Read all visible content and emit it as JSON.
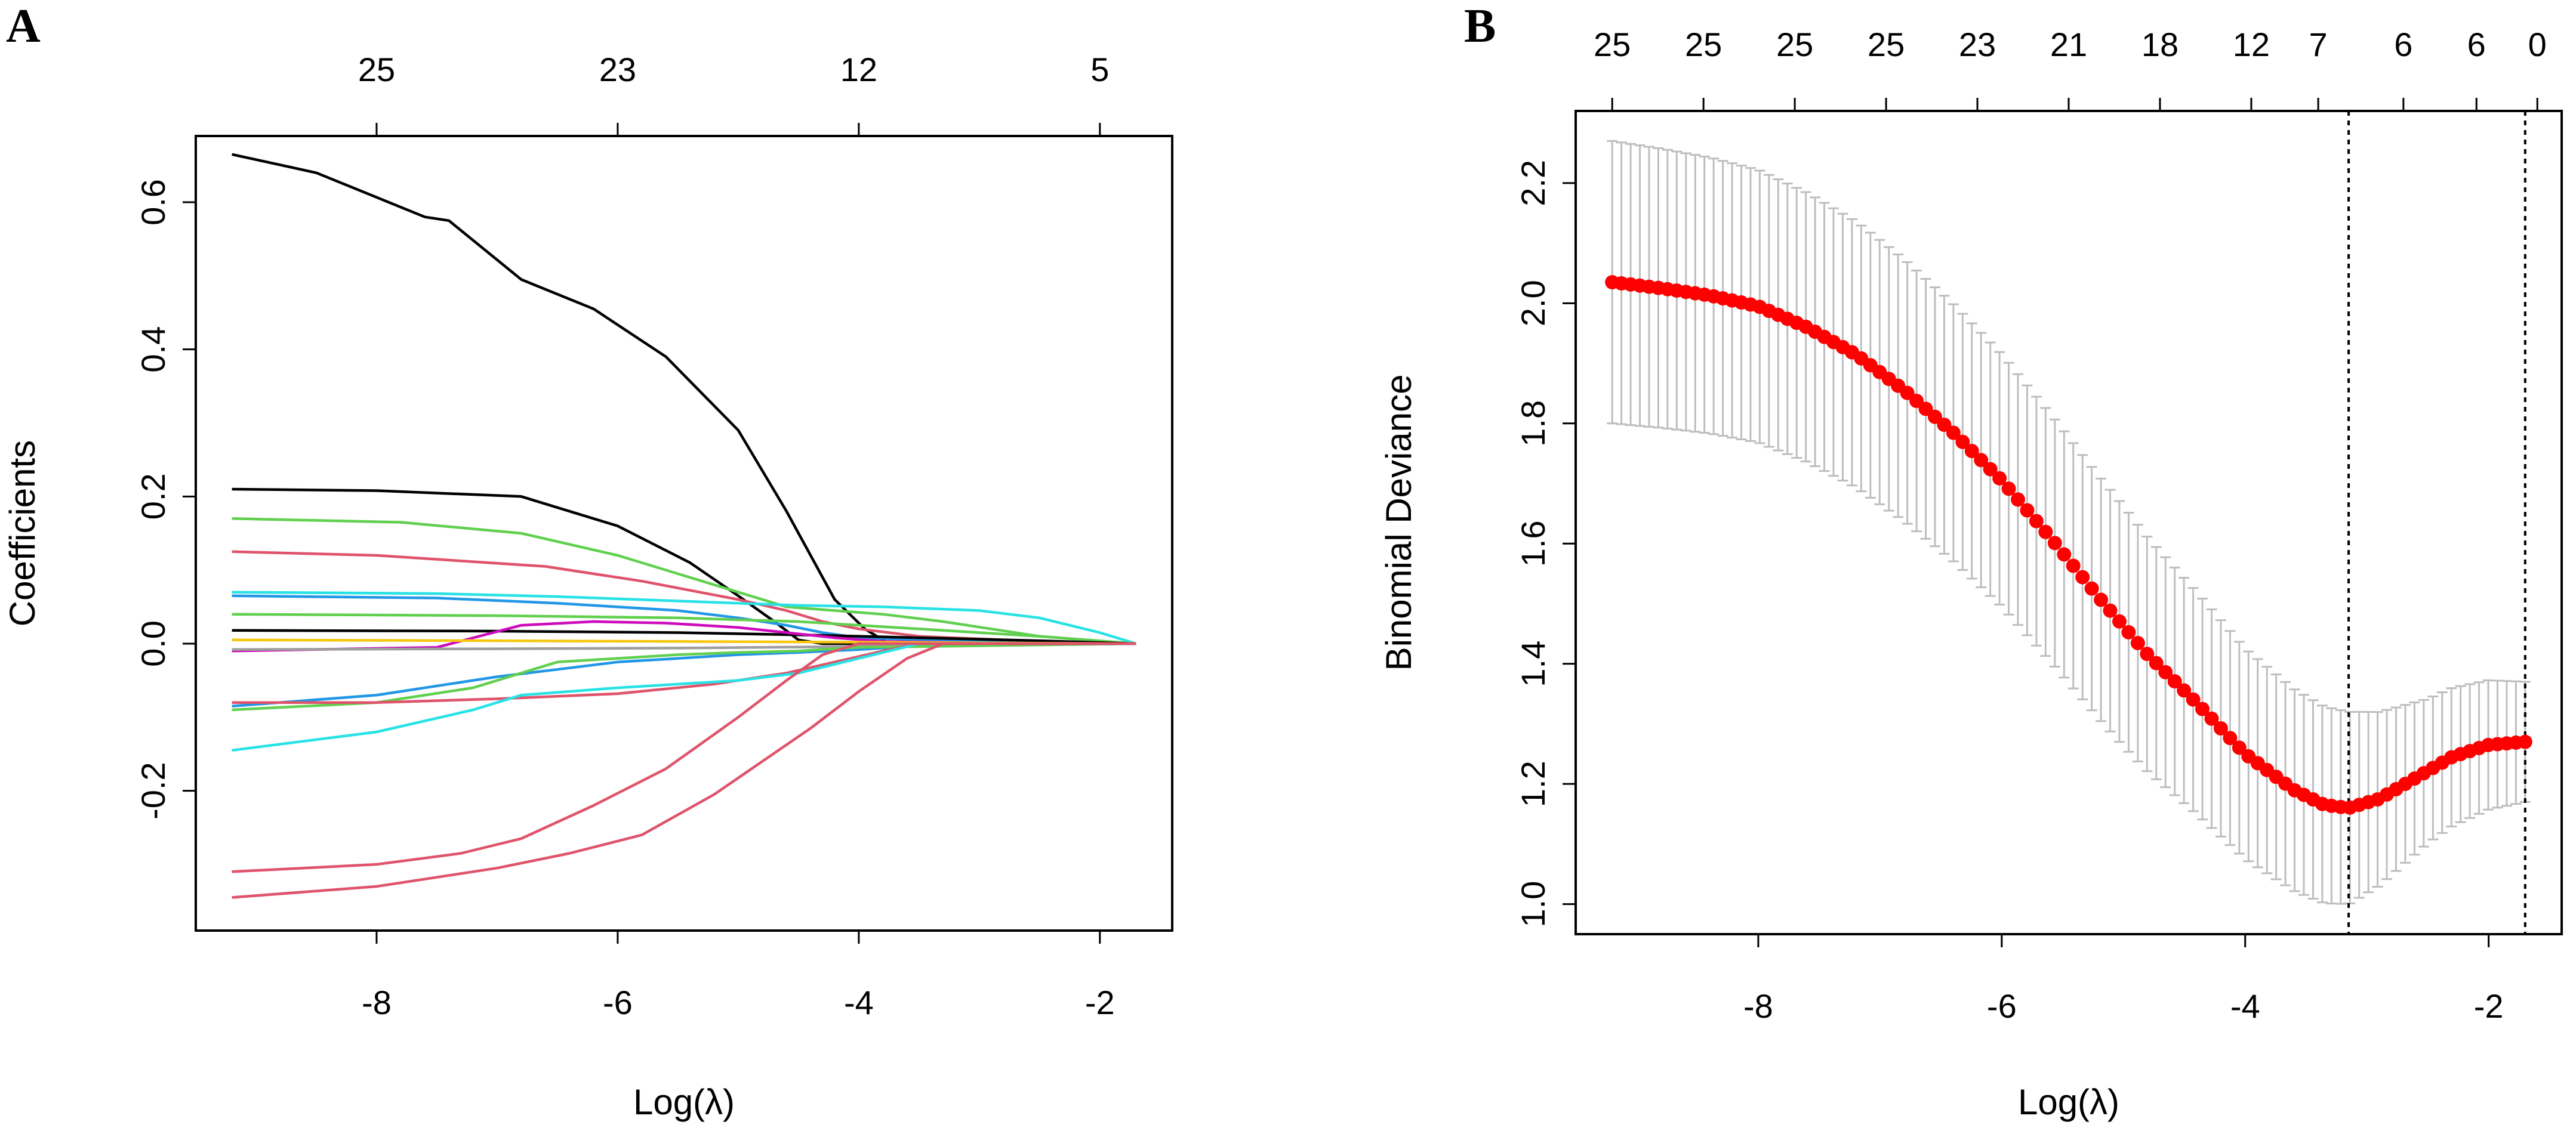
{
  "chart_data": [
    {
      "panel": "A",
      "type": "line",
      "xlabel": "Log(λ)",
      "ylabel": "Coefficients",
      "xlim": [
        -9.5,
        -1.4
      ],
      "ylim": [
        -0.39,
        0.69
      ],
      "x_ticks": [
        -8,
        -6,
        -4,
        -2
      ],
      "x_tick_labels": [
        "-8",
        "-6",
        "-4",
        "-2"
      ],
      "y_ticks": [
        -0.2,
        0.0,
        0.2,
        0.4,
        0.6
      ],
      "y_tick_labels": [
        "-0.2",
        "0.0",
        "0.2",
        "0.4",
        "0.6"
      ],
      "top_ticks": [
        -8,
        -6,
        -4,
        -2
      ],
      "top_tick_labels": [
        "25",
        "23",
        "12",
        "5"
      ],
      "series": [
        {
          "name": "coef-1",
          "color": "#000000",
          "x": [
            -9.2,
            -8.5,
            -7.6,
            -7.4,
            -6.8,
            -6.2,
            -5.6,
            -5.0,
            -4.6,
            -4.2,
            -3.95,
            -3.75,
            -3.5,
            -2.5,
            -1.7
          ],
          "y": [
            0.665,
            0.64,
            0.58,
            0.575,
            0.495,
            0.455,
            0.39,
            0.29,
            0.18,
            0.06,
            0.02,
            0.0,
            0.0,
            0.0,
            0.0
          ]
        },
        {
          "name": "coef-2",
          "color": "#000000",
          "x": [
            -9.2,
            -8.0,
            -6.8,
            -6.0,
            -5.4,
            -5.0,
            -4.7,
            -4.5,
            -4.3,
            -3.5,
            -1.7
          ],
          "y": [
            0.21,
            0.208,
            0.2,
            0.16,
            0.11,
            0.065,
            0.03,
            0.005,
            0.0,
            0.0,
            0.0
          ]
        },
        {
          "name": "coef-3",
          "color": "#61D04F",
          "x": [
            -9.2,
            -7.8,
            -6.8,
            -6.0,
            -5.4,
            -5.0,
            -4.6,
            -4.2,
            -3.8,
            -3.3,
            -2.5,
            -1.7
          ],
          "y": [
            0.17,
            0.165,
            0.15,
            0.12,
            0.09,
            0.07,
            0.05,
            0.045,
            0.04,
            0.03,
            0.01,
            0.0
          ]
        },
        {
          "name": "coef-4",
          "color": "#DF536B",
          "x": [
            -9.2,
            -8.0,
            -6.6,
            -5.8,
            -5.0,
            -4.6,
            -4.3,
            -4.0,
            -3.5,
            -2.5,
            -1.7
          ],
          "y": [
            0.125,
            0.12,
            0.105,
            0.085,
            0.06,
            0.045,
            0.03,
            0.02,
            0.01,
            0.003,
            0.0
          ]
        },
        {
          "name": "coef-5",
          "color": "#28E2E5",
          "x": [
            -9.2,
            -7.5,
            -6.5,
            -5.5,
            -4.5,
            -3.8,
            -3.0,
            -2.5,
            -2.0,
            -1.7
          ],
          "y": [
            0.07,
            0.068,
            0.064,
            0.058,
            0.052,
            0.05,
            0.045,
            0.035,
            0.015,
            0.0
          ]
        },
        {
          "name": "coef-6",
          "color": "#2297E6",
          "x": [
            -9.2,
            -7.5,
            -6.5,
            -5.5,
            -5.0,
            -4.6,
            -4.3,
            -4.0,
            -3.0,
            -1.7
          ],
          "y": [
            0.065,
            0.062,
            0.055,
            0.045,
            0.035,
            0.025,
            0.015,
            0.008,
            0.003,
            0.0
          ]
        },
        {
          "name": "coef-7",
          "color": "#61D04F",
          "x": [
            -9.2,
            -7.0,
            -5.5,
            -4.5,
            -3.5,
            -2.5,
            -1.7
          ],
          "y": [
            0.04,
            0.038,
            0.035,
            0.03,
            0.02,
            0.01,
            0.0
          ]
        },
        {
          "name": "coef-8",
          "color": "#000000",
          "x": [
            -9.2,
            -7.0,
            -5.5,
            -4.5,
            -3.5,
            -2.5,
            -1.7
          ],
          "y": [
            0.018,
            0.017,
            0.015,
            0.012,
            0.008,
            0.004,
            0.0
          ]
        },
        {
          "name": "coef-9",
          "color": "#CD0BBC",
          "x": [
            -9.2,
            -7.5,
            -6.8,
            -6.2,
            -5.6,
            -5.0,
            -4.6,
            -4.2,
            -3.8,
            -3.0,
            -1.7
          ],
          "y": [
            -0.01,
            -0.005,
            0.025,
            0.03,
            0.028,
            0.022,
            0.015,
            0.008,
            0.003,
            0.001,
            0.0
          ]
        },
        {
          "name": "coef-10",
          "color": "#F5C710",
          "x": [
            -9.2,
            -7.0,
            -5.5,
            -4.0,
            -3.0,
            -1.7
          ],
          "y": [
            0.005,
            0.004,
            0.003,
            0.002,
            0.001,
            0.0
          ]
        },
        {
          "name": "coef-11",
          "color": "#9E9E9E",
          "x": [
            -9.2,
            -7.0,
            -5.5,
            -4.0,
            -3.0,
            -1.7
          ],
          "y": [
            -0.008,
            -0.007,
            -0.006,
            -0.004,
            -0.002,
            0.0
          ]
        },
        {
          "name": "coef-12",
          "color": "#2297E6",
          "x": [
            -9.2,
            -8.0,
            -7.4,
            -7.0,
            -6.5,
            -6.0,
            -5.5,
            -5.0,
            -4.5,
            -4.0,
            -3.5,
            -1.7
          ],
          "y": [
            -0.085,
            -0.07,
            -0.055,
            -0.045,
            -0.035,
            -0.025,
            -0.02,
            -0.015,
            -0.012,
            -0.008,
            -0.003,
            0.0
          ]
        },
        {
          "name": "coef-13",
          "color": "#61D04F",
          "x": [
            -9.2,
            -8.0,
            -7.2,
            -6.8,
            -6.5,
            -6.0,
            -5.5,
            -5.0,
            -4.5,
            -4.0,
            -1.7
          ],
          "y": [
            -0.09,
            -0.08,
            -0.06,
            -0.04,
            -0.025,
            -0.02,
            -0.015,
            -0.012,
            -0.01,
            -0.005,
            0.0
          ]
        },
        {
          "name": "coef-14",
          "color": "#DF536B",
          "x": [
            -9.2,
            -8.0,
            -7.0,
            -6.0,
            -5.2,
            -4.6,
            -4.2,
            -3.8,
            -3.5,
            -1.7
          ],
          "y": [
            -0.08,
            -0.08,
            -0.075,
            -0.068,
            -0.055,
            -0.04,
            -0.025,
            -0.01,
            0.0,
            0.0
          ]
        },
        {
          "name": "coef-15",
          "color": "#28E2E5",
          "x": [
            -9.2,
            -8.0,
            -7.2,
            -6.8,
            -6.0,
            -5.0,
            -4.5,
            -4.0,
            -3.5,
            -1.7
          ],
          "y": [
            -0.145,
            -0.12,
            -0.09,
            -0.07,
            -0.06,
            -0.05,
            -0.04,
            -0.02,
            0.0,
            0.0
          ]
        },
        {
          "name": "coef-16",
          "color": "#DF536B",
          "x": [
            -9.2,
            -8.0,
            -7.3,
            -6.8,
            -6.2,
            -5.6,
            -5.0,
            -4.6,
            -4.3,
            -4.0,
            -3.7,
            -1.7
          ],
          "y": [
            -0.31,
            -0.3,
            -0.285,
            -0.265,
            -0.22,
            -0.17,
            -0.1,
            -0.05,
            -0.015,
            0.0,
            0.0,
            0.0
          ]
        },
        {
          "name": "coef-17",
          "color": "#DF536B",
          "x": [
            -9.2,
            -8.0,
            -7.0,
            -6.4,
            -5.8,
            -5.2,
            -4.8,
            -4.4,
            -4.0,
            -3.6,
            -3.3,
            -1.7
          ],
          "y": [
            -0.345,
            -0.33,
            -0.305,
            -0.285,
            -0.26,
            -0.205,
            -0.16,
            -0.115,
            -0.065,
            -0.02,
            0.0,
            0.0
          ]
        }
      ]
    },
    {
      "panel": "B",
      "type": "scatter",
      "subtype": "cv-deviance-with-error-bars",
      "xlabel": "Log(λ)",
      "ylabel": "Binomial Deviance",
      "xlim": [
        -9.5,
        -1.4
      ],
      "ylim": [
        0.95,
        2.32
      ],
      "x_ticks": [
        -8,
        -6,
        -4,
        -2
      ],
      "x_tick_labels": [
        "-8",
        "-6",
        "-4",
        "-2"
      ],
      "y_ticks": [
        1.0,
        1.2,
        1.4,
        1.6,
        1.8,
        2.0,
        2.2
      ],
      "y_tick_labels": [
        "1.0",
        "1.2",
        "1.4",
        "1.6",
        "1.8",
        "2.0",
        "2.2"
      ],
      "top_ticks": [
        -9.2,
        -8.45,
        -7.7,
        -6.95,
        -6.2,
        -5.45,
        -4.7,
        -3.95,
        -3.4,
        -2.7,
        -2.1,
        -1.6
      ],
      "top_tick_labels": [
        "25",
        "25",
        "25",
        "25",
        "23",
        "21",
        "18",
        "12",
        "7",
        "6",
        "6",
        "0"
      ],
      "vertical_lines": [
        -3.15,
        -1.7
      ],
      "point_color": "#FF0000",
      "errorbar_color": "#BEBEBE",
      "x_start": -9.2,
      "x_end": -1.7,
      "n_points": 100,
      "mean_curve": {
        "x": [
          -9.2,
          -8.8,
          -8.4,
          -8.0,
          -7.6,
          -7.2,
          -6.8,
          -6.4,
          -6.0,
          -5.6,
          -5.2,
          -4.8,
          -4.4,
          -4.0,
          -3.6,
          -3.35,
          -3.15,
          -2.9,
          -2.6,
          -2.3,
          -2.0,
          -1.7
        ],
        "y": [
          2.035,
          2.025,
          2.013,
          1.995,
          1.96,
          1.915,
          1.855,
          1.785,
          1.705,
          1.61,
          1.51,
          1.415,
          1.335,
          1.25,
          1.19,
          1.165,
          1.16,
          1.175,
          1.21,
          1.245,
          1.265,
          1.27
        ]
      },
      "halfwidth_curve": {
        "x": [
          -9.2,
          -7.0,
          -5.0,
          -4.0,
          -3.15,
          -2.5,
          -1.7
        ],
        "y": [
          0.235,
          0.22,
          0.2,
          0.175,
          0.16,
          0.12,
          0.1
        ]
      }
    }
  ],
  "figure": {
    "panel_labels": [
      "A",
      "B"
    ]
  }
}
